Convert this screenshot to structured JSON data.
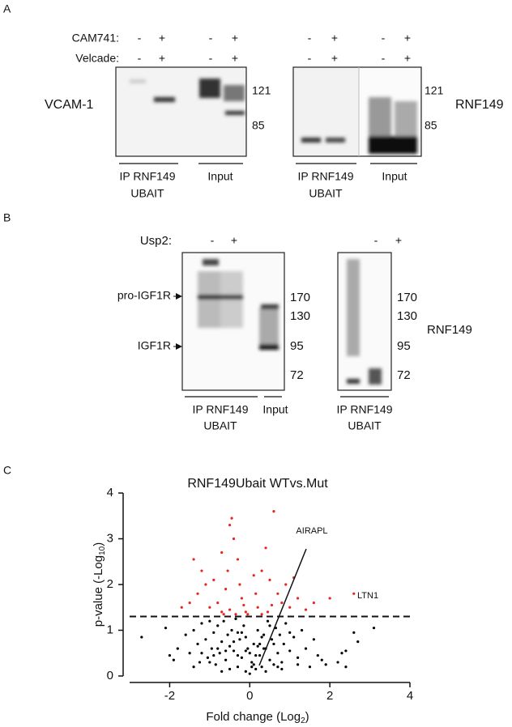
{
  "panel_a": {
    "label": "A",
    "treatments": [
      "CAM741:",
      "Velcade:"
    ],
    "left": {
      "signs": [
        [
          "-",
          "+",
          "-",
          "+"
        ],
        [
          "-",
          "+",
          "-",
          "+"
        ]
      ],
      "protein": "VCAM-1",
      "markers": [
        121,
        85
      ],
      "groups": [
        [
          "IP RNF149",
          "UBAIT"
        ],
        [
          "Input"
        ]
      ]
    },
    "right": {
      "signs": [
        [
          "-",
          "+",
          "-",
          "+"
        ],
        [
          "-",
          "+",
          "-",
          "+"
        ]
      ],
      "protein": "RNF149",
      "markers": [
        121,
        85
      ],
      "groups": [
        [
          "IP RNF149",
          "UBAIT"
        ],
        [
          "Input"
        ]
      ]
    }
  },
  "panel_b": {
    "label": "B",
    "treatment": "Usp2:",
    "left": {
      "signs": [
        "-",
        "+"
      ],
      "arrows": [
        "pro-IGF1R",
        "IGF1R"
      ],
      "markers": [
        170,
        130,
        95,
        72
      ],
      "groups": [
        [
          "IP RNF149",
          "UBAIT"
        ],
        [
          "Input"
        ]
      ]
    },
    "right": {
      "signs": [
        "-",
        "+"
      ],
      "protein": "RNF149",
      "markers": [
        170,
        130,
        95,
        72
      ],
      "groups": [
        [
          "IP RNF149",
          "UBAIT"
        ]
      ]
    }
  },
  "panel_c": {
    "label": "C"
  },
  "chart_data": {
    "type": "scatter",
    "title": "RNF149Ubait WTvs.Mut",
    "xlabel": [
      "Fold change (Log",
      "2",
      ")"
    ],
    "ylabel": [
      "p-value (-Log",
      "10",
      ")"
    ],
    "xlim": [
      -3,
      4
    ],
    "xticks": [
      -2,
      0,
      2,
      4
    ],
    "ylim": [
      0,
      4
    ],
    "yticks": [
      0,
      1,
      2,
      3,
      4
    ],
    "threshold": 1.3,
    "annotations": [
      "AIRAPL",
      "LTN1"
    ],
    "series": [
      {
        "color": "#000000",
        "x": [
          -2.7,
          -2.1,
          -2.0,
          -1.9,
          -1.8,
          -1.6,
          -1.5,
          -1.4,
          -1.3,
          -1.25,
          -1.2,
          -1.1,
          -1.05,
          -1.0,
          -0.95,
          -0.9,
          -0.85,
          -0.8,
          -0.75,
          -0.7,
          -0.65,
          -0.6,
          -0.55,
          -0.5,
          -0.45,
          -0.4,
          -0.35,
          -0.3,
          -0.25,
          -0.2,
          -0.15,
          -0.1,
          -0.05,
          0,
          0.05,
          0.1,
          0.15,
          0.2,
          0.25,
          0.3,
          0.35,
          0.4,
          0.45,
          0.5,
          0.55,
          0.6,
          0.65,
          0.7,
          0.75,
          0.8,
          0.85,
          0.9,
          1.0,
          1.1,
          1.2,
          1.3,
          1.4,
          1.5,
          1.7,
          1.8,
          1.9,
          2.2,
          2.3,
          2.4,
          2.4,
          2.6,
          2.7,
          3.1,
          -1.2,
          -1.0,
          -0.8,
          -0.6,
          -0.4,
          -0.3,
          -0.2,
          -0.1,
          0,
          0.1,
          0.2,
          0.3,
          0.4,
          0.6,
          0.8,
          1.0,
          -0.5,
          -0.3,
          -0.1,
          0.05,
          0.15,
          0.25,
          0.35,
          -0.7,
          -0.9,
          0.5,
          0.7,
          1.2,
          -1.4,
          1.6
        ],
        "values": [
          0.85,
          1.05,
          0.45,
          0.35,
          0.6,
          0.9,
          0.5,
          1.0,
          0.7,
          0.3,
          1.15,
          0.8,
          0.4,
          1.2,
          0.6,
          0.95,
          0.25,
          1.1,
          0.5,
          0.75,
          1.2,
          0.35,
          0.9,
          0.15,
          1.0,
          0.55,
          1.25,
          0.2,
          0.8,
          0.4,
          1.1,
          0.1,
          0.6,
          0.05,
          0.3,
          0.7,
          0.15,
          1.0,
          0.45,
          0.2,
          0.9,
          0.6,
          1.2,
          0.35,
          0.8,
          0.25,
          1.05,
          0.5,
          0.9,
          0.3,
          0.7,
          1.15,
          0.55,
          0.85,
          0.4,
          1.0,
          0.6,
          0.2,
          0.45,
          0.35,
          0.25,
          0.3,
          0.5,
          0.55,
          0.2,
          0.95,
          0.75,
          1.05,
          0.5,
          0.3,
          0.6,
          0.55,
          0.75,
          0.45,
          0.95,
          0.55,
          0.5,
          0.25,
          0.65,
          0.85,
          0.1,
          0.7,
          0.15,
          0.95,
          0.65,
          0.95,
          0.85,
          0.2,
          0.45,
          0.7,
          0.6,
          0.1,
          0.45,
          1.1,
          0.2,
          0.25,
          0.2,
          0.8
        ]
      },
      {
        "color": "#e8261f",
        "x": [
          -1.4,
          -1.2,
          -0.9,
          -0.7,
          -0.5,
          -0.45,
          -0.4,
          -0.3,
          -0.6,
          -0.8,
          -1.0,
          -0.2,
          -0.1,
          -0.35,
          -0.5,
          -0.7,
          -1.5,
          -1.7,
          -1.3,
          0.1,
          0.3,
          0.4,
          0.6,
          0.5,
          0.7,
          0.8,
          1.0,
          1.2,
          1.4,
          1.6,
          2.0,
          0.2,
          0.3,
          0.45,
          0.9,
          0.15,
          -0.25,
          -0.55,
          -0.15,
          2.6,
          1.1,
          -1.1,
          0.55,
          -0.05,
          -0.65
        ],
        "values": [
          2.55,
          2.3,
          2.1,
          2.7,
          3.3,
          3.45,
          3.0,
          2.55,
          1.9,
          1.6,
          1.5,
          1.7,
          1.4,
          1.35,
          1.45,
          1.4,
          1.6,
          1.5,
          1.8,
          2.2,
          2.3,
          2.8,
          3.6,
          2.1,
          1.8,
          1.6,
          1.5,
          1.7,
          1.45,
          1.6,
          1.7,
          1.5,
          1.35,
          1.4,
          2.0,
          1.8,
          2.0,
          2.3,
          1.55,
          1.8,
          2.15,
          2.0,
          1.55,
          1.35,
          1.35
        ]
      }
    ]
  }
}
